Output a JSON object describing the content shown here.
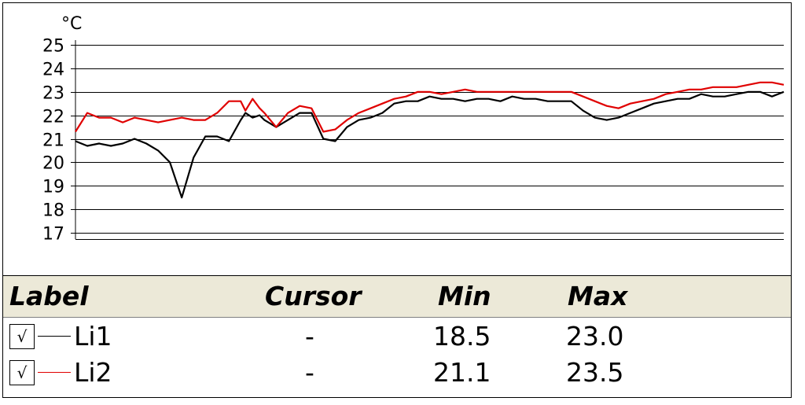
{
  "colors": {
    "li1": "#000000",
    "li2": "#e00000",
    "header_bg": "#ece9d8",
    "grid": "#000000"
  },
  "chart_data": {
    "type": "line",
    "unit_label": "°C",
    "ylim": [
      17,
      25
    ],
    "yticks": [
      17,
      18,
      19,
      20,
      21,
      22,
      23,
      24,
      25
    ],
    "xlim": [
      0,
      300
    ],
    "grid": true,
    "series": [
      {
        "name": "Li1",
        "color": "#000000",
        "x": [
          0,
          5,
          10,
          15,
          20,
          25,
          30,
          35,
          40,
          45,
          50,
          55,
          60,
          65,
          70,
          72,
          75,
          78,
          80,
          85,
          90,
          95,
          100,
          105,
          110,
          115,
          120,
          125,
          130,
          135,
          140,
          145,
          150,
          155,
          160,
          165,
          170,
          175,
          180,
          185,
          190,
          195,
          200,
          205,
          210,
          215,
          220,
          225,
          230,
          235,
          240,
          245,
          250,
          255,
          260,
          265,
          270,
          275,
          280,
          285,
          290,
          295,
          300
        ],
        "y": [
          20.9,
          20.7,
          20.8,
          20.7,
          20.8,
          21.0,
          20.8,
          20.5,
          20.0,
          18.5,
          20.2,
          21.1,
          21.1,
          20.9,
          21.8,
          22.1,
          21.9,
          22.0,
          21.8,
          21.5,
          21.8,
          22.1,
          22.1,
          21.0,
          20.9,
          21.5,
          21.8,
          21.9,
          22.1,
          22.5,
          22.6,
          22.6,
          22.8,
          22.7,
          22.7,
          22.6,
          22.7,
          22.7,
          22.6,
          22.8,
          22.7,
          22.7,
          22.6,
          22.6,
          22.6,
          22.2,
          21.9,
          21.8,
          21.9,
          22.1,
          22.3,
          22.5,
          22.6,
          22.7,
          22.7,
          22.9,
          22.8,
          22.8,
          22.9,
          23.0,
          23.0,
          22.8,
          23.0
        ]
      },
      {
        "name": "Li2",
        "color": "#e00000",
        "x": [
          0,
          5,
          10,
          15,
          20,
          25,
          30,
          35,
          40,
          45,
          50,
          55,
          60,
          65,
          70,
          72,
          75,
          78,
          80,
          85,
          90,
          95,
          100,
          105,
          110,
          115,
          120,
          125,
          130,
          135,
          140,
          145,
          150,
          155,
          160,
          165,
          170,
          175,
          180,
          185,
          190,
          195,
          200,
          205,
          210,
          215,
          220,
          225,
          230,
          235,
          240,
          245,
          250,
          255,
          260,
          265,
          270,
          275,
          280,
          285,
          290,
          295,
          300
        ],
        "y": [
          21.3,
          22.1,
          21.9,
          21.9,
          21.7,
          21.9,
          21.8,
          21.7,
          21.8,
          21.9,
          21.8,
          21.8,
          22.1,
          22.6,
          22.6,
          22.2,
          22.7,
          22.3,
          22.1,
          21.5,
          22.1,
          22.4,
          22.3,
          21.3,
          21.4,
          21.8,
          22.1,
          22.3,
          22.5,
          22.7,
          22.8,
          23.0,
          23.0,
          22.9,
          23.0,
          23.1,
          23.0,
          23.0,
          23.0,
          23.0,
          23.0,
          23.0,
          23.0,
          23.0,
          23.0,
          22.8,
          22.6,
          22.4,
          22.3,
          22.5,
          22.6,
          22.7,
          22.9,
          23.0,
          23.1,
          23.1,
          23.2,
          23.2,
          23.2,
          23.3,
          23.4,
          23.4,
          23.3
        ]
      }
    ]
  },
  "legend": {
    "headers": {
      "label": "Label",
      "cursor": "Cursor",
      "min": "Min",
      "max": "Max"
    },
    "rows": [
      {
        "checked": true,
        "check_glyph": "√",
        "label": "Li1",
        "cursor": "-",
        "min": "18.5",
        "max": "23.0"
      },
      {
        "checked": true,
        "check_glyph": "√",
        "label": "Li2",
        "cursor": "-",
        "min": "21.1",
        "max": "23.5"
      }
    ]
  }
}
